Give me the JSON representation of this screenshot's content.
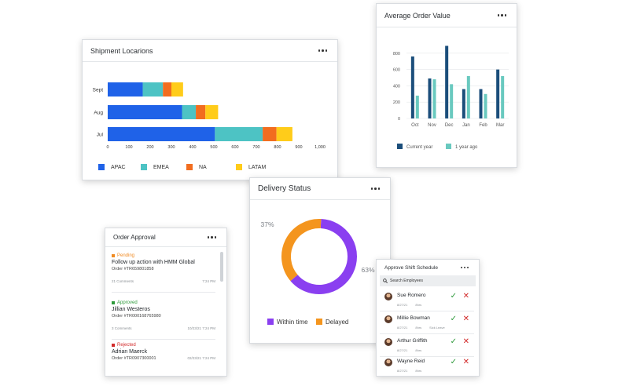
{
  "shipment": {
    "title": "Shipment Locarions",
    "rows": [
      {
        "label": "Sept",
        "segments": [
          {
            "name": "APAC",
            "value": 165
          },
          {
            "name": "EMEA",
            "value": 95
          },
          {
            "name": "NA",
            "value": 40
          },
          {
            "name": "LATAM",
            "value": 55
          }
        ]
      },
      {
        "label": "Aug",
        "segments": [
          {
            "name": "APAC",
            "value": 350
          },
          {
            "name": "EMEA",
            "value": 65
          },
          {
            "name": "NA",
            "value": 45
          },
          {
            "name": "LATAM",
            "value": 60
          }
        ]
      },
      {
        "label": "Jul",
        "segments": [
          {
            "name": "APAC",
            "value": 505
          },
          {
            "name": "EMEA",
            "value": 225
          },
          {
            "name": "NA",
            "value": 65
          },
          {
            "name": "LATAM",
            "value": 75
          }
        ]
      }
    ],
    "ticks": [
      "0",
      "100",
      "200",
      "300",
      "400",
      "500",
      "600",
      "700",
      "800",
      "900",
      "1,000"
    ],
    "xmax": 1000,
    "legend": [
      {
        "name": "APAC",
        "color": "#1f62e8"
      },
      {
        "name": "EMEA",
        "color": "#4dc3c4"
      },
      {
        "name": "NA",
        "color": "#f26d1f"
      },
      {
        "name": "LATAM",
        "color": "#ffcc1a"
      }
    ]
  },
  "aov": {
    "title": "Average Order Value",
    "categories": [
      "Oct",
      "Nov",
      "Dec",
      "Jan",
      "Feb",
      "Mar"
    ],
    "ticks": [
      "0",
      "200",
      "400",
      "600",
      "800"
    ],
    "ymax": 1000,
    "series": [
      {
        "name": "Current year",
        "color": "#1b4e7b",
        "values": [
          760,
          490,
          890,
          360,
          360,
          600
        ]
      },
      {
        "name": "1 year ago",
        "color": "#69c9bf",
        "values": [
          280,
          480,
          420,
          520,
          300,
          520
        ]
      }
    ]
  },
  "delivery": {
    "title": "Delivery Status",
    "slices": [
      {
        "name": "Within time",
        "value": 63,
        "label": "63%",
        "color": "#8a3ff0"
      },
      {
        "name": "Delayed",
        "value": 37,
        "label": "37%",
        "color": "#f4951e"
      }
    ]
  },
  "approval": {
    "title": "Order Approval",
    "items": [
      {
        "status": "Pending",
        "status_color": "#f08b23",
        "title": "Follow up action with HMM Global",
        "order": "Order #TR659801858",
        "comments": "21 Comments",
        "time": "7:24 PM"
      },
      {
        "status": "Approved",
        "status_color": "#2e9a3b",
        "title": "Jillian Westeros",
        "order": "Order #TR000168765980",
        "comments": "3 Comments",
        "time": "10/23/21 7:24 PM"
      },
      {
        "status": "Rejected",
        "status_color": "#d22b2b",
        "title": "Adrian Maerck",
        "order": "Order #TR0907300001",
        "comments": "",
        "time": "02/23/21 7:24 PM"
      }
    ]
  },
  "shift": {
    "title": "Approve Shift Schedule",
    "search_placeholder": "Search Employees",
    "rows": [
      {
        "name": "Sue Romero",
        "sub": [
          "8/27/21",
          "8hrs"
        ]
      },
      {
        "name": "Millie Bowman",
        "sub": [
          "8/27/21",
          "8hrs",
          "Sick Leave"
        ]
      },
      {
        "name": "Arthur Griffith",
        "sub": [
          "8/27/21",
          "8hrs"
        ]
      },
      {
        "name": "Wayne Reid",
        "sub": [
          "8/27/21",
          "8hrs"
        ]
      }
    ],
    "approve_icon": "check-icon",
    "reject_icon": "close-icon"
  }
}
